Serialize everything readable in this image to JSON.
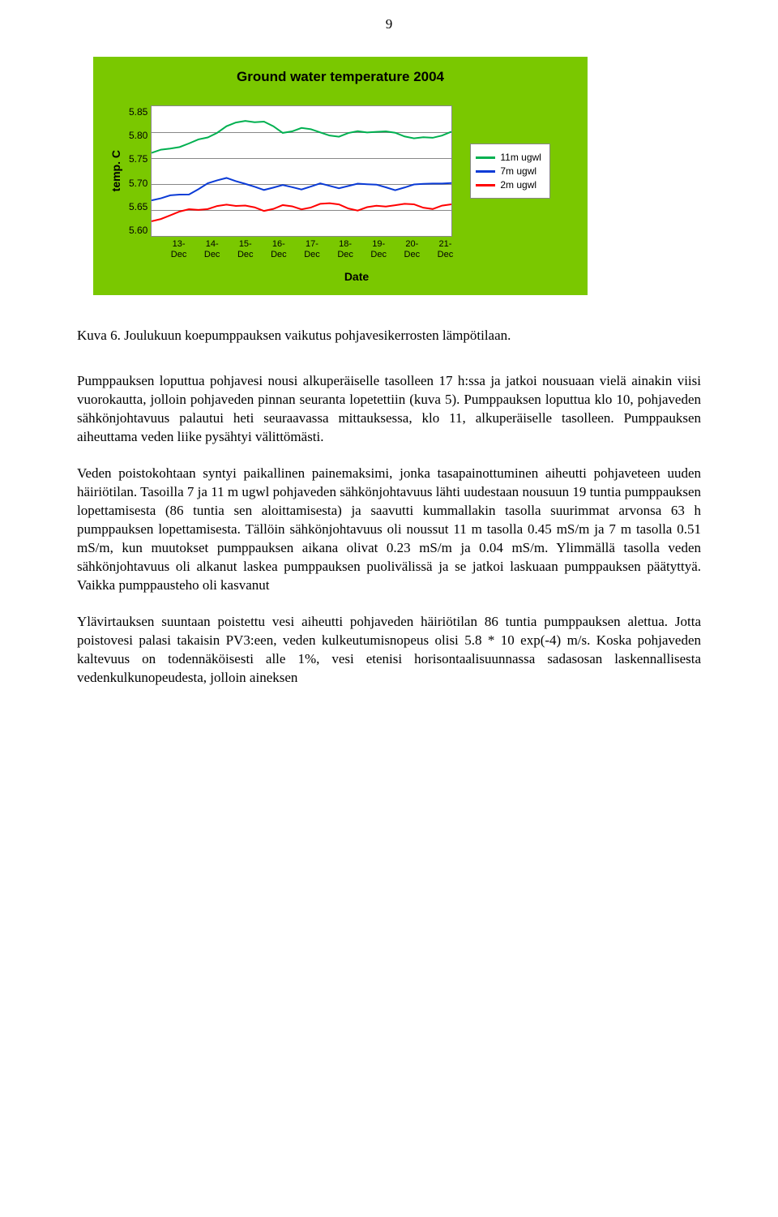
{
  "page_number": "9",
  "chart": {
    "type": "line",
    "title": "Ground water temperature 2004",
    "ylabel": "temp. C",
    "xlabel": "Date",
    "ylim": [
      5.6,
      5.85
    ],
    "ytick_step": 0.05,
    "yticks": [
      "5.85",
      "5.80",
      "5.75",
      "5.70",
      "5.65",
      "5.60"
    ],
    "xticks": [
      "13-\nDec",
      "14-\nDec",
      "15-\nDec",
      "16-\nDec",
      "17-\nDec",
      "18-\nDec",
      "19-\nDec",
      "20-\nDec",
      "21-\nDec"
    ],
    "background_color": "#7ac800",
    "plot_bg": "#ffffff",
    "grid_color": "#888888",
    "series": [
      {
        "name": "11m ugwl",
        "color": "#00b050",
        "line_width": 2,
        "values": [
          5.76,
          5.77,
          5.78,
          5.79,
          5.81,
          5.82,
          5.82,
          5.8,
          5.81,
          5.8,
          5.79,
          5.8,
          5.8,
          5.8,
          5.79,
          5.79,
          5.8
        ]
      },
      {
        "name": "7m ugwl",
        "color": "#0b3bd6",
        "line_width": 2,
        "values": [
          5.67,
          5.68,
          5.68,
          5.7,
          5.71,
          5.7,
          5.69,
          5.7,
          5.69,
          5.7,
          5.69,
          5.7,
          5.7,
          5.69,
          5.7,
          5.7,
          5.7
        ]
      },
      {
        "name": "2m ugwl",
        "color": "#ff0000",
        "line_width": 2,
        "values": [
          5.63,
          5.64,
          5.65,
          5.65,
          5.66,
          5.66,
          5.65,
          5.66,
          5.65,
          5.66,
          5.66,
          5.65,
          5.66,
          5.66,
          5.66,
          5.65,
          5.66
        ]
      }
    ],
    "title_fontsize": 17,
    "label_fontsize": 14,
    "tick_fontsize": 12
  },
  "caption": "Kuva 6. Joulukuun koepumppauksen vaikutus pohjavesikerrosten lämpötilaan.",
  "para1": "Pumppauksen loputtua pohjavesi nousi alkuperäiselle tasolleen 17 h:ssa ja jatkoi nousuaan vielä ainakin viisi vuorokautta, jolloin pohjaveden pinnan seuranta lopetettiin (kuva 5). Pumppauksen loputtua klo 10, pohjaveden sähkönjohtavuus palautui heti seuraavassa mittauksessa, klo 11, alkuperäiselle tasolleen. Pumppauksen aiheuttama veden liike pysähtyi välittömästi.",
  "para2": "Veden poistokohtaan syntyi paikallinen painemaksimi, jonka tasapainottuminen aiheutti pohjaveteen uuden häiriötilan. Tasoilla 7 ja 11 m ugwl pohjaveden sähkönjohtavuus lähti uudestaan nousuun 19 tuntia pumppauksen lopettamisesta (86 tuntia sen aloittamisesta) ja saavutti kummallakin tasolla suurimmat arvonsa 63 h pumppauksen lopettamisesta. Tällöin sähkönjohtavuus oli noussut 11 m tasolla 0.45 mS/m ja 7 m tasolla 0.51 mS/m, kun muutokset pumppauksen aikana olivat 0.23 mS/m ja 0.04 mS/m. Ylimmällä tasolla veden sähkönjohtavuus oli alkanut laskea pumppauksen puolivälissä ja se jatkoi laskuaan pumppauksen päätyttyä. Vaikka pumppausteho oli kasvanut",
  "para3": "Ylävirtauksen suuntaan poistettu vesi aiheutti pohjaveden häiriötilan 86 tuntia pumppauksen alettua. Jotta poistovesi palasi takaisin PV3:een, veden kulkeutumisnopeus olisi 5.8 * 10 exp(-4) m/s. Koska pohjaveden kaltevuus on todennäköisesti alle 1%, vesi etenisi horisontaalisuunnassa sadasosan laskennallisesta vedenkulkunopeudesta, jolloin aineksen"
}
